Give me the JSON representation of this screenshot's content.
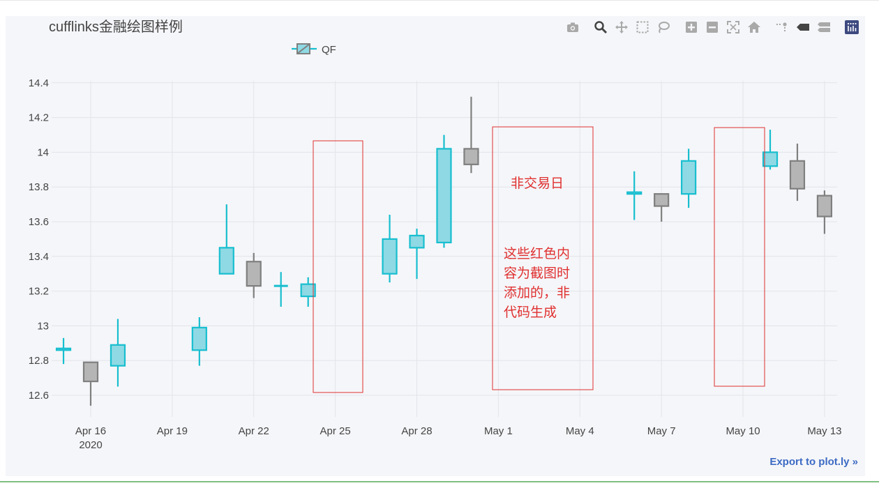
{
  "chart_data": {
    "type": "candlestick",
    "title": "cufflinks金融绘图样例",
    "legend": {
      "entries": [
        "QF"
      ],
      "placement": "top-left"
    },
    "x_tick_labels": [
      "Apr 16\n2020",
      "Apr 19",
      "Apr 22",
      "Apr 25",
      "Apr 28",
      "May 1",
      "May 4",
      "May 7",
      "May 10",
      "May 13"
    ],
    "x_tick_dates": [
      "2020-04-16",
      "2020-04-19",
      "2020-04-22",
      "2020-04-25",
      "2020-04-28",
      "2020-05-01",
      "2020-05-04",
      "2020-05-07",
      "2020-05-10",
      "2020-05-13"
    ],
    "x_range": [
      "2020-04-14",
      "2020-05-13.5"
    ],
    "y_ticks": [
      "12.6",
      "12.8",
      "13",
      "13.2",
      "13.4",
      "13.6",
      "13.8",
      "14",
      "14.2",
      "14.4"
    ],
    "y_tick_values": [
      12.6,
      12.8,
      13.0,
      13.2,
      13.4,
      13.6,
      13.8,
      14.0,
      14.2,
      14.4
    ],
    "ylim": [
      12.5,
      14.4
    ],
    "grid": true,
    "colors": {
      "increasing": "#17becf",
      "increasing_fill": "#8ed9e4",
      "decreasing": "#7f7f7f",
      "decreasing_fill": "#b5b5b5"
    },
    "series": [
      {
        "name": "QF",
        "candles": [
          {
            "date": "2020-04-15",
            "open": 12.86,
            "high": 12.93,
            "low": 12.78,
            "close": 12.87
          },
          {
            "date": "2020-04-16",
            "open": 12.79,
            "high": 12.79,
            "low": 12.54,
            "close": 12.68
          },
          {
            "date": "2020-04-17",
            "open": 12.77,
            "high": 13.04,
            "low": 12.65,
            "close": 12.89
          },
          {
            "date": "2020-04-20",
            "open": 12.86,
            "high": 13.05,
            "low": 12.77,
            "close": 12.99
          },
          {
            "date": "2020-04-21",
            "open": 13.3,
            "high": 13.7,
            "low": 13.3,
            "close": 13.45
          },
          {
            "date": "2020-04-22",
            "open": 13.37,
            "high": 13.42,
            "low": 13.16,
            "close": 13.23
          },
          {
            "date": "2020-04-23",
            "open": 13.23,
            "high": 13.31,
            "low": 13.11,
            "close": 13.23
          },
          {
            "date": "2020-04-24",
            "open": 13.17,
            "high": 13.28,
            "low": 13.11,
            "close": 13.24
          },
          {
            "date": "2020-04-27",
            "open": 13.3,
            "high": 13.64,
            "low": 13.25,
            "close": 13.5
          },
          {
            "date": "2020-04-28",
            "open": 13.45,
            "high": 13.56,
            "low": 13.27,
            "close": 13.52
          },
          {
            "date": "2020-04-29",
            "open": 13.48,
            "high": 14.1,
            "low": 13.45,
            "close": 14.02
          },
          {
            "date": "2020-04-30",
            "open": 14.02,
            "high": 14.32,
            "low": 13.88,
            "close": 13.93
          },
          {
            "date": "2020-05-06",
            "open": 13.76,
            "high": 13.89,
            "low": 13.61,
            "close": 13.77
          },
          {
            "date": "2020-05-07",
            "open": 13.76,
            "high": 13.76,
            "low": 13.6,
            "close": 13.69
          },
          {
            "date": "2020-05-08",
            "open": 13.76,
            "high": 14.02,
            "low": 13.68,
            "close": 13.95
          },
          {
            "date": "2020-05-11",
            "open": 13.92,
            "high": 14.13,
            "low": 13.9,
            "close": 14.0
          },
          {
            "date": "2020-05-12",
            "open": 13.95,
            "high": 14.05,
            "low": 13.72,
            "close": 13.79
          },
          {
            "date": "2020-05-13",
            "open": 13.75,
            "high": 13.78,
            "low": 13.53,
            "close": 13.63
          }
        ]
      }
    ],
    "annotations": [
      {
        "text": "非交易日"
      },
      {
        "text": "这些红色内\n容为截图时\n添加的，非\n代码生成"
      }
    ],
    "annotation_color": "#e03030"
  },
  "toolbar": {
    "icons": [
      "camera-icon",
      "zoom-icon",
      "pan-icon",
      "box-select-icon",
      "lasso-select-icon",
      "zoom-in-icon",
      "zoom-out-icon",
      "autoscale-icon",
      "reset-axes-icon",
      "spike-lines-icon",
      "hover-closest-icon",
      "hover-compare-icon",
      "plotly-logo-icon"
    ]
  },
  "export_link": "Export to plot.ly »"
}
